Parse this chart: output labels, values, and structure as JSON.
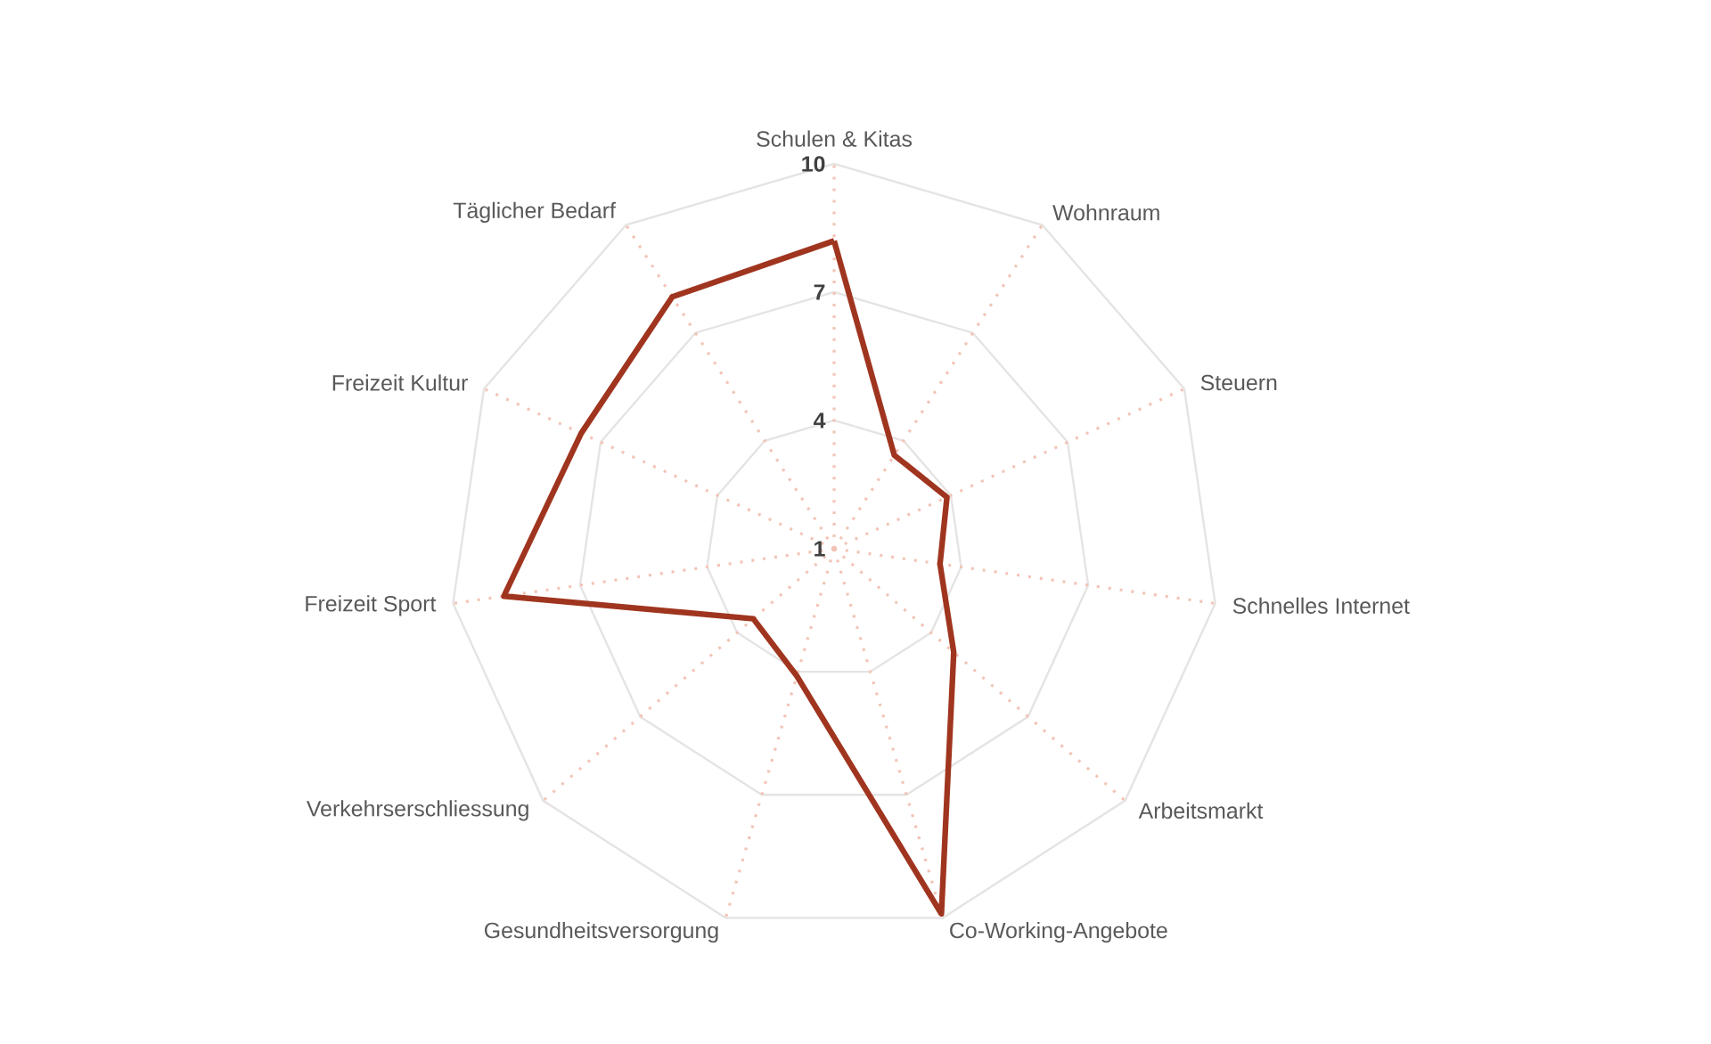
{
  "chart_data": {
    "type": "radar",
    "categories": [
      "Schulen & Kitas",
      "Wohnraum",
      "Steuern",
      "Schnelles Internet",
      "Arbeitsmarkt",
      "Co-Working-Angebote",
      "Gesundheitsversorgung",
      "Verkehrserschliessung",
      "Freizeit Sport",
      "Freizeit Kultur",
      "Täglicher Bedarf"
    ],
    "series": [
      {
        "color": "#a0351f",
        "values": [
          8.2,
          3.6,
          3.9,
          3.5,
          4.7,
          9.9,
          4.1,
          3.5,
          8.8,
          7.5,
          8.0
        ]
      }
    ],
    "ylim": [
      1,
      10
    ],
    "yticks": [
      1,
      4,
      7,
      10
    ],
    "grid": true
  }
}
